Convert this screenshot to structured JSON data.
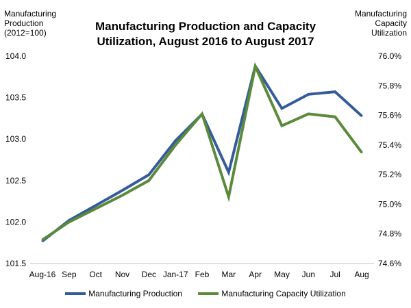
{
  "chart_data": {
    "type": "line",
    "title_lines": [
      "Manufacturing Production and Capacity",
      "Utilization, August 2016 to August 2017"
    ],
    "left_axis": {
      "label_lines": [
        "Manufacturing",
        "Production",
        "(2012=100)"
      ],
      "range": [
        101.5,
        104.0
      ],
      "ticks": [
        "101.5",
        "102.0",
        "102.5",
        "103.0",
        "103.5",
        "104.0"
      ]
    },
    "right_axis": {
      "label_lines": [
        "Manufacturing",
        "Capacity",
        "Utilization"
      ],
      "range": [
        74.6,
        76.0
      ],
      "ticks": [
        "74.6%",
        "74.8%",
        "75.0%",
        "75.2%",
        "75.4%",
        "75.6%",
        "75.8%",
        "76.0%"
      ]
    },
    "categories": [
      "Aug-16",
      "Sep",
      "Oct",
      "Nov",
      "Dec",
      "Jan-17",
      "Feb",
      "Mar",
      "Apr",
      "May",
      "Jun",
      "Jul",
      "Aug"
    ],
    "series": [
      {
        "name": "Manufacturing Production",
        "axis": "left",
        "color": "#355c9a",
        "values": [
          101.77,
          102.02,
          102.2,
          102.38,
          102.57,
          102.98,
          103.3,
          102.6,
          103.88,
          103.37,
          103.54,
          103.57,
          103.28
        ]
      },
      {
        "name": "Manufacturing Capacity Utilization",
        "axis": "right",
        "color": "#5a8a3a",
        "values": [
          74.76,
          74.88,
          74.97,
          75.06,
          75.16,
          75.4,
          75.61,
          75.05,
          75.93,
          75.53,
          75.61,
          75.59,
          75.35
        ]
      }
    ]
  }
}
